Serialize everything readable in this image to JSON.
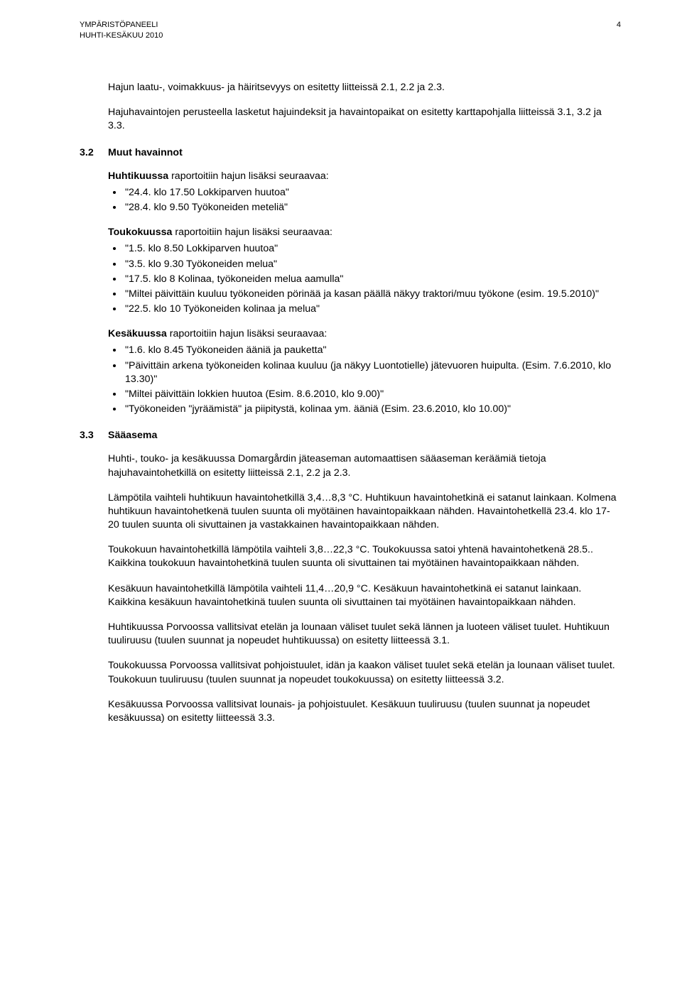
{
  "header": {
    "line1": "YMPÄRISTÖPANEELI",
    "line2": "HUHTI-KESÄKUU 2010",
    "page_number": "4"
  },
  "intro": {
    "p1": "Hajun laatu-, voimakkuus- ja häiritsevyys on esitetty liitteissä 2.1, 2.2 ja 2.3.",
    "p2": "Hajuhavaintojen perusteella lasketut hajuindeksit ja havaintopaikat on esitetty karttapohjalla liitteissä 3.1, 3.2 ja 3.3."
  },
  "sec32": {
    "num": "3.2",
    "title": "Muut havainnot",
    "huhti_intro_prefix": "Huhtikuussa",
    "huhti_intro_rest": " raportoitiin hajun lisäksi seuraavaa:",
    "huhti_items": [
      "\"24.4. klo 17.50 Lokkiparven huutoa\"",
      "\"28.4. klo 9.50 Työkoneiden meteliä\""
    ],
    "touko_intro_prefix": "Toukokuussa",
    "touko_intro_rest": " raportoitiin hajun lisäksi seuraavaa:",
    "touko_items": [
      "\"1.5. klo 8.50 Lokkiparven huutoa\"",
      "\"3.5. klo 9.30 Työkoneiden melua\"",
      "\"17.5. klo 8 Kolinaa, työkoneiden melua aamulla\"",
      "\"Miltei päivittäin kuuluu työkoneiden pörinää ja kasan päällä näkyy traktori/muu työkone (esim. 19.5.2010)\"",
      "\"22.5. klo 10 Työkoneiden kolinaa ja melua\""
    ],
    "kesa_intro_prefix": "Kesäkuussa",
    "kesa_intro_rest": " raportoitiin hajun lisäksi seuraavaa:",
    "kesa_items": [
      "\"1.6. klo 8.45 Työkoneiden ääniä ja pauketta\"",
      "\"Päivittäin arkena työkoneiden kolinaa kuuluu (ja näkyy Luontotielle) jätevuoren huipulta. (Esim. 7.6.2010, klo 13.30)\"",
      "\"Miltei päivittäin lokkien huutoa (Esim. 8.6.2010, klo 9.00)\"",
      "\"Työkoneiden \"jyräämistä\" ja piipitystä, kolinaa ym. ääniä (Esim. 23.6.2010, klo 10.00)\""
    ]
  },
  "sec33": {
    "num": "3.3",
    "title": "Sääasema",
    "paragraphs": [
      "Huhti-, touko- ja kesäkuussa Domargårdin jäteaseman automaattisen sääaseman keräämiä tietoja hajuhavaintohetkillä on esitetty liitteissä 2.1, 2.2 ja 2.3.",
      "Lämpötila vaihteli huhtikuun havaintohetkillä 3,4…8,3 °C. Huhtikuun havaintohetkinä ei satanut lainkaan. Kolmena huhtikuun havaintohetkenä tuulen suunta oli myötäinen havaintopaikkaan nähden. Havaintohetkellä 23.4. klo 17-20 tuulen suunta oli sivuttainen ja vastakkainen havaintopaikkaan nähden.",
      "Toukokuun havaintohetkillä lämpötila vaihteli 3,8…22,3 °C. Toukokuussa satoi yhtenä havaintohetkenä 28.5.. Kaikkina toukokuun havaintohetkinä tuulen suunta oli sivuttainen tai myötäinen havaintopaikkaan nähden.",
      "Kesäkuun havaintohetkillä lämpötila vaihteli 11,4…20,9 °C. Kesäkuun havaintohetkinä ei satanut lainkaan. Kaikkina kesäkuun havaintohetkinä tuulen suunta oli sivuttainen tai myötäinen havaintopaikkaan nähden.",
      "Huhtikuussa Porvoossa vallitsivat etelän ja lounaan väliset tuulet sekä lännen ja luoteen väliset tuulet. Huhtikuun tuuliruusu (tuulen suunnat ja nopeudet huhtikuussa) on esitetty liitteessä 3.1.",
      "Toukokuussa Porvoossa vallitsivat pohjoistuulet, idän ja kaakon väliset tuulet sekä etelän ja lounaan väliset tuulet. Toukokuun tuuliruusu (tuulen suunnat ja nopeudet toukokuussa) on esitetty liitteessä 3.2.",
      "Kesäkuussa Porvoossa vallitsivat lounais- ja pohjoistuulet. Kesäkuun tuuliruusu (tuulen suunnat ja nopeudet kesäkuussa) on esitetty liitteessä 3.3."
    ]
  }
}
